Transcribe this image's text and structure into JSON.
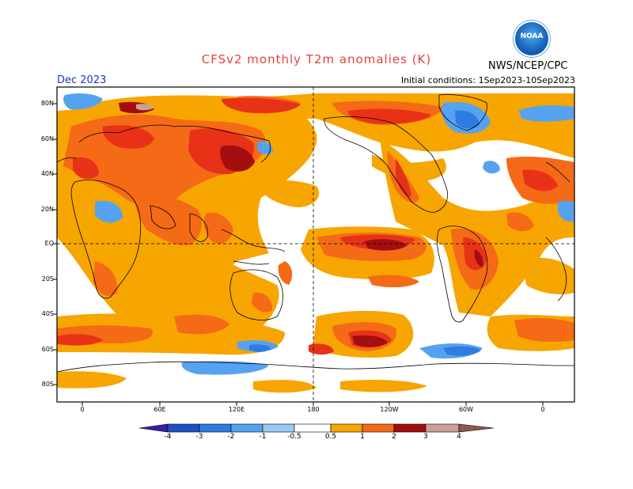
{
  "header": {
    "title": "CFSv2 monthly T2m anomalies (K)",
    "valid_month": "Dec 2023",
    "initial_conditions": "Initial conditions: 1Sep2023-10Sep2023",
    "agency": "NWS/NCEP/CPC",
    "logo_text": "NOAA"
  },
  "axes": {
    "lat_labels": [
      "80N",
      "60N",
      "40N",
      "20N",
      "EQ",
      "20S",
      "40S",
      "60S",
      "80S"
    ],
    "lon_labels": [
      "0",
      "60E",
      "120E",
      "180",
      "120W",
      "60W",
      "0"
    ]
  },
  "colorbar": {
    "labels": [
      "-4",
      "-3",
      "-2",
      "-1",
      "-0.5",
      "0.5",
      "1",
      "2",
      "3",
      "4"
    ],
    "colors": [
      "#3b1fa3",
      "#1f4fc4",
      "#2e7ce0",
      "#55a3f0",
      "#9ac8f5",
      "#ffffff",
      "#f7a500",
      "#f56a16",
      "#e83218",
      "#a30f0f",
      "#c9a095",
      "#8a5a4e"
    ]
  },
  "colors": {
    "weak_warm": "#f7a500",
    "warm": "#f56a16",
    "strong_warm": "#e83218",
    "very_warm": "#a30f0f",
    "weak_cold": "#9ac8f5",
    "cold": "#55a3f0",
    "strong_cold": "#2e7ce0",
    "title_red": "#e8403a",
    "month_blue": "#1a33cc"
  }
}
